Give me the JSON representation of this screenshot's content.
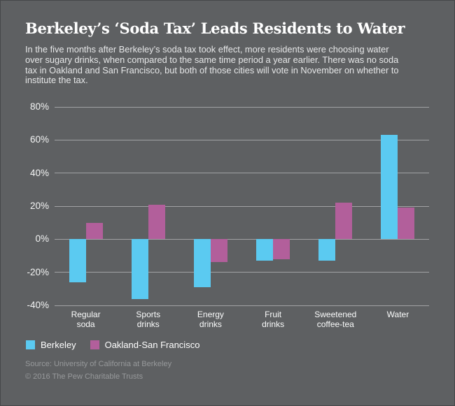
{
  "colors": {
    "background": "#5e6062",
    "berkeley_blue": "#5bcaf1",
    "oakland_sf_purple": "#b25f9b",
    "gridline": "rgba(255,255,255,0.42)",
    "footer_text": "#97999b"
  },
  "chart_data": {
    "type": "bar",
    "title": "Berkeley’s ‘Soda Tax’ Leads Residents to Water",
    "subtitle": "In the five months after Berkeley’s soda tax took effect, more residents were choosing water\nover sugary drinks, when compared to the same time period a year earlier. There was no soda\ntax in Oakland and San Francisco, but both of those cities will vote in November on whether to\ninstitute the tax.",
    "categories": [
      "Regular soda",
      "Sports drinks",
      "Energy drinks",
      "Fruit drinks",
      "Sweetened coffee-tea",
      "Water"
    ],
    "category_display": [
      "Regular\nsoda",
      "Sports\ndrinks",
      "Energy\ndrinks",
      "Fruit\ndrinks",
      "Sweetened\ncoffee-tea",
      "Water"
    ],
    "series": [
      {
        "name": "Berkeley",
        "color": "#5bcaf1",
        "values": [
          -26,
          -36,
          -29,
          -13,
          -13,
          63
        ]
      },
      {
        "name": "Oakland-San Francisco",
        "color": "#b25f9b",
        "values": [
          10,
          21,
          -14,
          -12,
          22,
          19
        ]
      }
    ],
    "xlabel": "",
    "ylabel": "",
    "ylim": [
      -40,
      80
    ],
    "ytick_step": 20,
    "ytick_suffix": "%",
    "grid": true,
    "legend_position": "bottom-left"
  },
  "footer": {
    "source": "Source: University of California at Berkeley",
    "copyright": "© 2016 The Pew Charitable Trusts"
  }
}
